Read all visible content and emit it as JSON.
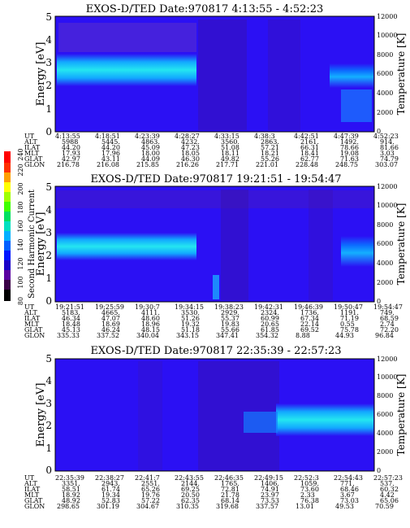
{
  "chart_data": [
    {
      "type": "heatmap",
      "title": "EXOS-D/TED   Date:970817  4:13:55 - 4:52:23",
      "ylabel": "Energy [eV]",
      "y2label": "Temperature [K]",
      "ylim": [
        0,
        5
      ],
      "y2lim": [
        0,
        12000
      ],
      "yticks": [
        "0",
        "1",
        "2",
        "3",
        "4",
        "5"
      ],
      "y2ticks": [
        "0",
        "2000",
        "4000",
        "6000",
        "8000",
        "10000",
        "12000"
      ],
      "time_labels": [
        "4:13:55",
        "4:18:51",
        "4:23:39",
        "4:28:27",
        "4:33:15",
        "4:38:3",
        "4:42:51",
        "4:47:39",
        "4:52:23"
      ],
      "ephemeris": [
        {
          "label": "UT",
          "values": [
            "4:13:55",
            "4:18:51",
            "4:23:39",
            "4:28:27",
            "4:33:15",
            "4:38:3",
            "4:42:51",
            "4:47:39",
            "4:52:23"
          ]
        },
        {
          "label": "ALT",
          "values": [
            "5988",
            "5445.",
            "4863.",
            "4232.",
            "3560.",
            "2863.",
            "2161.",
            "1492.",
            "914."
          ]
        },
        {
          "label": "ILAT",
          "values": [
            "44.20",
            "44.20",
            "45.09",
            "47.23",
            "51.08",
            "57.21",
            "66.31",
            "78.66",
            "81.66"
          ]
        },
        {
          "label": "MLT",
          "values": [
            "17.93",
            "17.96",
            "18.00",
            "18.05",
            "18.11",
            "18.21",
            "18.41",
            "19.08",
            "3.03"
          ]
        },
        {
          "label": "GLAT",
          "values": [
            "42.97",
            "43.11",
            "44.09",
            "46.30",
            "49.82",
            "55.26",
            "62.77",
            "71.63",
            "74.79"
          ]
        },
        {
          "label": "GLON",
          "values": [
            "216.78",
            "216.08",
            "215.85",
            "216.26",
            "217.71",
            "221.01",
            "228.48",
            "248.75",
            "303.07"
          ]
        }
      ]
    },
    {
      "type": "heatmap",
      "title": "EXOS-D/TED   Date:970817  19:21:51 - 19:54:47",
      "ylabel": "Energy [eV]",
      "y2label": "Temperature [K]",
      "ylim": [
        0,
        5
      ],
      "y2lim": [
        0,
        12000
      ],
      "yticks": [
        "0",
        "1",
        "2",
        "3",
        "4",
        "5"
      ],
      "y2ticks": [
        "0",
        "2000",
        "4000",
        "6000",
        "8000",
        "10000",
        "12000"
      ],
      "time_labels": [
        "19:21:51",
        "19:25:59",
        "19:30:7",
        "19:34:15",
        "19:38:23",
        "19:42:31",
        "19:46:39",
        "19:50:47",
        "19:54:47"
      ],
      "ephemeris": [
        {
          "label": "UT",
          "values": [
            "19:21:51",
            "19:25:59",
            "19:30:7",
            "19:34:15",
            "19:38:23",
            "19:42:31",
            "19:46:39",
            "19:50:47",
            "19:54:47"
          ]
        },
        {
          "label": "ALT",
          "values": [
            "5183.",
            "4665.",
            "4111.",
            "3530.",
            "2929.",
            "2324.",
            "1736.",
            "1191.",
            "749."
          ]
        },
        {
          "label": "ILAT",
          "values": [
            "46.34",
            "47.07",
            "48.60",
            "51.26",
            "55.37",
            "60.99",
            "67.34",
            "71.19",
            "68.59"
          ]
        },
        {
          "label": "MLT",
          "values": [
            "18.48",
            "18.69",
            "18.96",
            "19.32",
            "19.83",
            "20.65",
            "22.14",
            "0.55",
            "2.74"
          ]
        },
        {
          "label": "GLAT",
          "values": [
            "45.13",
            "46.24",
            "48.15",
            "51.18",
            "55.66",
            "61.85",
            "69.52",
            "75.78",
            "72.20"
          ]
        },
        {
          "label": "GLON",
          "values": [
            "335.33",
            "337.52",
            "340.04",
            "343.15",
            "347.41",
            "354.32",
            "8.88",
            "44.93",
            "96.84"
          ]
        }
      ]
    },
    {
      "type": "heatmap",
      "title": "EXOS-D/TED   Date:970817  22:35:39 - 22:57:23",
      "ylabel": "Energy [eV]",
      "y2label": "Temperature [K]",
      "ylim": [
        0,
        5
      ],
      "y2lim": [
        0,
        12000
      ],
      "yticks": [
        "0",
        "1",
        "2",
        "3",
        "4",
        "5"
      ],
      "y2ticks": [
        "0",
        "2000",
        "4000",
        "6000",
        "8000",
        "10000",
        "12000"
      ],
      "time_labels": [
        "22:35:39",
        "22:38:27",
        "22:41:7",
        "22:43:55",
        "22:46:35",
        "22:49:15",
        "22:52:3",
        "22:54:43",
        "22:57:23"
      ],
      "ephemeris": [
        {
          "label": "UT",
          "values": [
            "22:35:39",
            "22:38:27",
            "22:41:7",
            "22:43:55",
            "22:46:35",
            "22:49:15",
            "22:52:3",
            "22:54:43",
            "22:57:23"
          ]
        },
        {
          "label": "ALT",
          "values": [
            "3351.",
            "2943.",
            "2551.",
            "2144.",
            "1765.",
            "1406.",
            "1059.",
            "771.",
            "537."
          ]
        },
        {
          "label": "ILAT",
          "values": [
            "58.51",
            "61.74",
            "65.26",
            "69.25",
            "72.81",
            "74.91",
            "73.60",
            "68.46",
            "60.32"
          ]
        },
        {
          "label": "MLT",
          "values": [
            "18.92",
            "19.34",
            "19.76",
            "20.50",
            "21.78",
            "23.97",
            "2.33",
            "3.67",
            "4.42"
          ]
        },
        {
          "label": "GLAT",
          "values": [
            "48.92",
            "52.83",
            "57.22",
            "62.35",
            "68.14",
            "73.53",
            "76.38",
            "73.03",
            "65.06"
          ]
        },
        {
          "label": "GLON",
          "values": [
            "298.65",
            "301.19",
            "304.67",
            "310.35",
            "319.68",
            "337.57",
            "13.01",
            "49.53",
            "70.59"
          ]
        }
      ]
    }
  ],
  "colorbar": {
    "label": "Second Harmonic Current",
    "ticks": [
      "80",
      "100",
      "120",
      "140",
      "160",
      "180",
      "200",
      "220",
      "240"
    ],
    "colors": [
      "#000000",
      "#3a0046",
      "#5a00a0",
      "#1a00c8",
      "#0016ff",
      "#0060ff",
      "#00b0ff",
      "#00e0c0",
      "#00e060",
      "#40ff00",
      "#a0ff00",
      "#ffff00",
      "#ffa000",
      "#ff3000",
      "#ff0000"
    ]
  },
  "colors": {
    "background": "#2b10f4",
    "band": "#12a8ff",
    "band_core": "#24e6f0",
    "dark_stripe": "#3a12a8",
    "noise_top": "#b5d8b0"
  }
}
